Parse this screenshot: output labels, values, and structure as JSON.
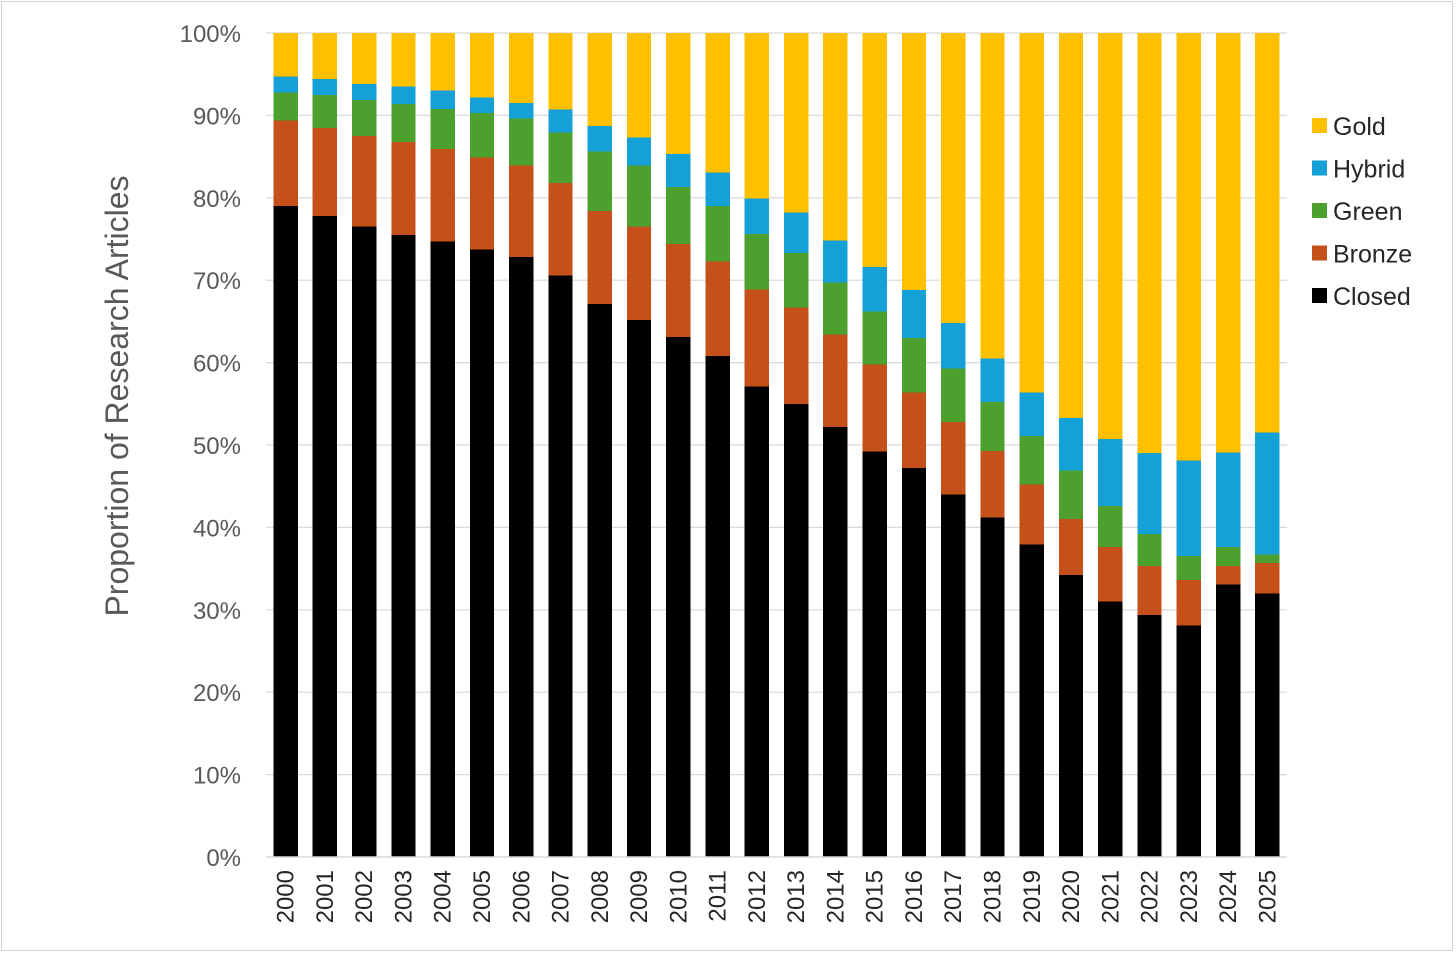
{
  "chart_data": {
    "type": "bar",
    "stacked": true,
    "percent": true,
    "title": "",
    "xlabel": "",
    "ylabel": "Proportion of Research Articles",
    "ylim": [
      0,
      100
    ],
    "yticks": [
      "0%",
      "10%",
      "20%",
      "30%",
      "40%",
      "50%",
      "60%",
      "70%",
      "80%",
      "90%",
      "100%"
    ],
    "legend_position": "right",
    "categories": [
      "2000",
      "2001",
      "2002",
      "2003",
      "2004",
      "2005",
      "2006",
      "2007",
      "2008",
      "2009",
      "2010",
      "2011",
      "2012",
      "2013",
      "2014",
      "2015",
      "2016",
      "2017",
      "2018",
      "2019",
      "2020",
      "2021",
      "2022",
      "2023",
      "2024",
      "2025"
    ],
    "series": [
      {
        "name": "Closed",
        "color": "#000000",
        "values": [
          79.0,
          77.8,
          76.5,
          75.5,
          74.7,
          73.7,
          72.8,
          70.6,
          67.1,
          65.2,
          63.1,
          60.8,
          57.1,
          55.0,
          52.2,
          49.2,
          47.2,
          44.0,
          41.2,
          37.9,
          34.2,
          31.0,
          29.4,
          28.1,
          33.1,
          32.0
        ]
      },
      {
        "name": "Bronze",
        "color": "#C5501A",
        "values": [
          10.4,
          10.7,
          11.0,
          11.3,
          11.2,
          11.2,
          11.1,
          11.2,
          11.3,
          11.3,
          11.3,
          11.5,
          11.8,
          11.7,
          11.2,
          10.6,
          9.2,
          8.8,
          8.1,
          7.3,
          6.8,
          6.6,
          5.9,
          5.5,
          2.2,
          3.7
        ]
      },
      {
        "name": "Green",
        "color": "#4CA12E",
        "values": [
          3.4,
          4.0,
          4.4,
          4.6,
          4.9,
          5.4,
          5.7,
          6.1,
          7.2,
          7.4,
          6.9,
          6.7,
          6.7,
          6.6,
          6.3,
          6.4,
          6.6,
          6.5,
          5.9,
          5.9,
          5.9,
          5.0,
          3.9,
          2.9,
          2.3,
          1.0
        ]
      },
      {
        "name": "Hybrid",
        "color": "#16A0D8",
        "values": [
          1.9,
          1.9,
          1.9,
          2.1,
          2.2,
          1.9,
          1.9,
          2.8,
          3.1,
          3.4,
          4.0,
          4.1,
          4.3,
          4.9,
          5.1,
          5.4,
          5.8,
          5.5,
          5.3,
          5.3,
          6.4,
          8.1,
          9.8,
          11.6,
          11.5,
          14.8
        ]
      },
      {
        "name": "Gold",
        "color": "#FFC000",
        "values": [
          5.3,
          5.6,
          6.2,
          6.5,
          7.0,
          7.8,
          8.5,
          9.3,
          11.3,
          12.7,
          14.7,
          16.9,
          20.1,
          21.8,
          25.2,
          28.4,
          31.2,
          35.2,
          39.5,
          43.6,
          46.7,
          49.3,
          51.0,
          51.9,
          50.9,
          48.5
        ]
      }
    ],
    "legend": [
      "Gold",
      "Hybrid",
      "Green",
      "Bronze",
      "Closed"
    ]
  }
}
